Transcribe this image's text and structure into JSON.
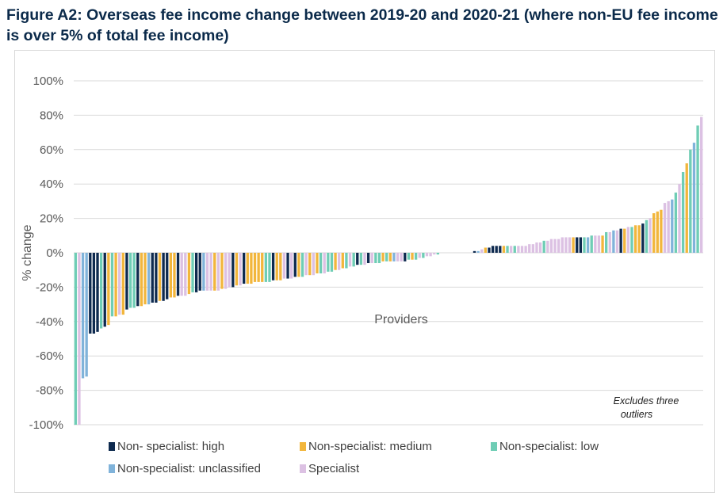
{
  "title": "Figure A2: Overseas fee income change between 2019-20 and 2020-21 (where non-EU fee income is over 5% of total fee income)",
  "chart_data": {
    "type": "bar",
    "ylabel": "% change",
    "xlabel": "Providers",
    "ylim": [
      -100,
      100
    ],
    "yticks": [
      "100%",
      "80%",
      "60%",
      "40%",
      "20%",
      "0%",
      "-20%",
      "-40%",
      "-60%",
      "-80%",
      "-100%"
    ],
    "grid": true,
    "legend_placement": "bottom",
    "annotation": "Excludes three outliers",
    "annotation_lines": [
      "Excludes three",
      "outliers"
    ],
    "series": [
      {
        "key": "H",
        "name": "Non- specialist: high",
        "color": "#0e2a4f"
      },
      {
        "key": "M",
        "name": "Non-specialist: medium",
        "color": "#f2b63c"
      },
      {
        "key": "L",
        "name": "Non-specialist: low",
        "color": "#6fcdb5"
      },
      {
        "key": "U",
        "name": "Non-specialist: unclassified",
        "color": "#80b3da"
      },
      {
        "key": "S",
        "name": "Specialist",
        "color": "#dcc1e3"
      }
    ],
    "bars": [
      [
        "L",
        -100
      ],
      [
        "S",
        -100
      ],
      [
        "U",
        -73
      ],
      [
        "U",
        -72
      ],
      [
        "H",
        -47
      ],
      [
        "H",
        -47
      ],
      [
        "H",
        -46
      ],
      [
        "L",
        -44
      ],
      [
        "H",
        -43
      ],
      [
        "M",
        -42
      ],
      [
        "L",
        -37
      ],
      [
        "M",
        -37
      ],
      [
        "S",
        -36
      ],
      [
        "M",
        -36
      ],
      [
        "H",
        -33
      ],
      [
        "L",
        -32
      ],
      [
        "L",
        -32
      ],
      [
        "H",
        -31
      ],
      [
        "M",
        -31
      ],
      [
        "M",
        -30
      ],
      [
        "U",
        -30
      ],
      [
        "H",
        -29
      ],
      [
        "H",
        -29
      ],
      [
        "M",
        -28
      ],
      [
        "H",
        -28
      ],
      [
        "H",
        -27
      ],
      [
        "M",
        -26
      ],
      [
        "M",
        -26
      ],
      [
        "H",
        -25
      ],
      [
        "S",
        -25
      ],
      [
        "S",
        -25
      ],
      [
        "M",
        -24
      ],
      [
        "L",
        -23
      ],
      [
        "H",
        -23
      ],
      [
        "H",
        -22
      ],
      [
        "U",
        -22
      ],
      [
        "S",
        -22
      ],
      [
        "S",
        -22
      ],
      [
        "M",
        -22
      ],
      [
        "S",
        -22
      ],
      [
        "M",
        -21
      ],
      [
        "S",
        -21
      ],
      [
        "S",
        -20
      ],
      [
        "H",
        -20
      ],
      [
        "M",
        -19
      ],
      [
        "S",
        -19
      ],
      [
        "H",
        -18
      ],
      [
        "M",
        -18
      ],
      [
        "M",
        -18
      ],
      [
        "M",
        -17
      ],
      [
        "M",
        -17
      ],
      [
        "M",
        -17
      ],
      [
        "L",
        -17
      ],
      [
        "L",
        -17
      ],
      [
        "H",
        -16
      ],
      [
        "M",
        -16
      ],
      [
        "M",
        -16
      ],
      [
        "S",
        -15
      ],
      [
        "H",
        -15
      ],
      [
        "S",
        -15
      ],
      [
        "H",
        -14
      ],
      [
        "M",
        -14
      ],
      [
        "L",
        -14
      ],
      [
        "S",
        -13
      ],
      [
        "M",
        -13
      ],
      [
        "S",
        -13
      ],
      [
        "M",
        -12
      ],
      [
        "L",
        -12
      ],
      [
        "S",
        -12
      ],
      [
        "L",
        -11
      ],
      [
        "L",
        -11
      ],
      [
        "M",
        -10
      ],
      [
        "S",
        -10
      ],
      [
        "M",
        -9
      ],
      [
        "L",
        -9
      ],
      [
        "S",
        -8
      ],
      [
        "L",
        -8
      ],
      [
        "H",
        -7
      ],
      [
        "L",
        -7
      ],
      [
        "S",
        -7
      ],
      [
        "H",
        -6
      ],
      [
        "S",
        -6
      ],
      [
        "L",
        -6
      ],
      [
        "L",
        -6
      ],
      [
        "M",
        -5
      ],
      [
        "L",
        -5
      ],
      [
        "M",
        -5
      ],
      [
        "U",
        -5
      ],
      [
        "S",
        -5
      ],
      [
        "S",
        -5
      ],
      [
        "H",
        -5
      ],
      [
        "L",
        -4
      ],
      [
        "M",
        -4
      ],
      [
        "L",
        -4
      ],
      [
        "S",
        -3
      ],
      [
        "L",
        -3
      ],
      [
        "S",
        -2
      ],
      [
        "S",
        -2
      ],
      [
        "S",
        -1
      ],
      [
        "L",
        -1
      ],
      [
        "S",
        0
      ],
      [
        "S",
        0
      ],
      [
        "S",
        0
      ],
      [
        "S",
        0
      ],
      [
        "S",
        0
      ],
      [
        "S",
        0
      ],
      [
        "S",
        0
      ],
      [
        "S",
        0
      ],
      [
        "S",
        0
      ],
      [
        "H",
        1
      ],
      [
        "U",
        1
      ],
      [
        "S",
        2
      ],
      [
        "M",
        3
      ],
      [
        "H",
        3
      ],
      [
        "H",
        4
      ],
      [
        "H",
        4
      ],
      [
        "H",
        4
      ],
      [
        "M",
        4
      ],
      [
        "L",
        4
      ],
      [
        "S",
        4
      ],
      [
        "L",
        4
      ],
      [
        "S",
        4
      ],
      [
        "S",
        4
      ],
      [
        "S",
        4
      ],
      [
        "S",
        5
      ],
      [
        "S",
        5
      ],
      [
        "S",
        6
      ],
      [
        "S",
        6
      ],
      [
        "L",
        7
      ],
      [
        "S",
        7
      ],
      [
        "S",
        8
      ],
      [
        "S",
        8
      ],
      [
        "S",
        8
      ],
      [
        "S",
        9
      ],
      [
        "S",
        9
      ],
      [
        "S",
        9
      ],
      [
        "M",
        9
      ],
      [
        "H",
        9
      ],
      [
        "H",
        9
      ],
      [
        "L",
        9
      ],
      [
        "U",
        9
      ],
      [
        "L",
        10
      ],
      [
        "S",
        10
      ],
      [
        "S",
        10
      ],
      [
        "M",
        10
      ],
      [
        "L",
        12
      ],
      [
        "S",
        12
      ],
      [
        "U",
        13
      ],
      [
        "S",
        13
      ],
      [
        "H",
        14
      ],
      [
        "M",
        14
      ],
      [
        "S",
        15
      ],
      [
        "L",
        15
      ],
      [
        "M",
        16
      ],
      [
        "M",
        16
      ],
      [
        "H",
        17
      ],
      [
        "L",
        19
      ],
      [
        "S",
        20
      ],
      [
        "M",
        23
      ],
      [
        "M",
        24
      ],
      [
        "M",
        25
      ],
      [
        "S",
        29
      ],
      [
        "S",
        30
      ],
      [
        "U",
        31
      ],
      [
        "L",
        35
      ],
      [
        "S",
        40
      ],
      [
        "L",
        47
      ],
      [
        "M",
        52
      ],
      [
        "L",
        60
      ],
      [
        "U",
        64
      ],
      [
        "L",
        74
      ],
      [
        "S",
        79
      ]
    ]
  }
}
